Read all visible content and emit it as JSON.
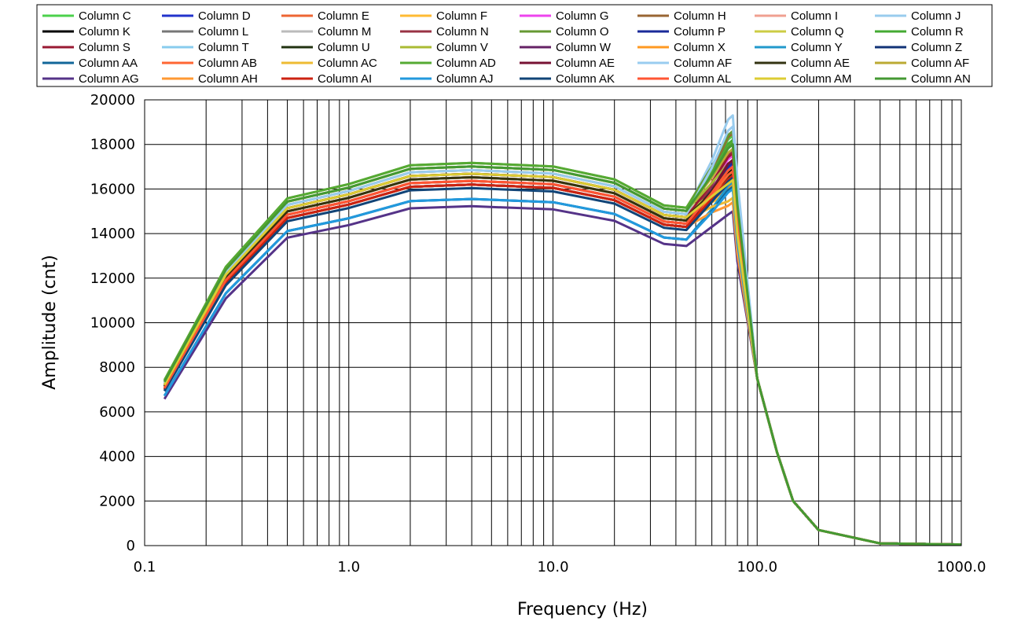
{
  "chart_data": {
    "type": "line",
    "title": "",
    "xlabel": "Frequency (Hz)",
    "ylabel": "Amplitude  (cnt)",
    "xscale": "log",
    "xlim": [
      0.1,
      1000
    ],
    "ylim": [
      0,
      20000
    ],
    "grid": true,
    "legend_position": "top",
    "x_tick_labels": [
      "0.1",
      "1.0",
      "10.0",
      "100.0",
      "1000.0"
    ],
    "y_tick_labels": [
      "0",
      "2000",
      "4000",
      "6000",
      "8000",
      "10000",
      "12000",
      "14000",
      "16000",
      "18000",
      "20000"
    ],
    "x": [
      0.125,
      0.25,
      0.5,
      1,
      2,
      4,
      10,
      20,
      35,
      45,
      60,
      72,
      76,
      80,
      100,
      125,
      150,
      200,
      400,
      1000
    ],
    "series_names": [
      "Column C",
      "Column D",
      "Column E",
      "Column F",
      "Column G",
      "Column H",
      "Column I",
      "Column J",
      "Column K",
      "Column L",
      "Column M",
      "Column N",
      "Column O",
      "Column P",
      "Column Q",
      "Column R",
      "Column S",
      "Column T",
      "Column U",
      "Column V",
      "Column W",
      "Column X",
      "Column Y",
      "Column Z",
      "Column AA",
      "Column AB",
      "Column AC",
      "Column AD",
      "Column AE",
      "Column AF",
      "Column AE",
      "Column AF",
      "Column AG",
      "Column AH",
      "Column AI",
      "Column AJ",
      "Column AK",
      "Column AL",
      "Column AM",
      "Column AN"
    ],
    "series_colors": [
      "#4cd14c",
      "#2233cc",
      "#ee6633",
      "#ffbb33",
      "#ee44ee",
      "#996633",
      "#f0a090",
      "#99ccee",
      "#000000",
      "#777777",
      "#bbbbbb",
      "#993344",
      "#669933",
      "#1a2a99",
      "#cccc44",
      "#44aa33",
      "#991a33",
      "#88ccee",
      "#223311",
      "#aabb33",
      "#662266",
      "#ff9922",
      "#2299cc",
      "#113377",
      "#116699",
      "#ff6633",
      "#eebb33",
      "#55aa33",
      "#771133",
      "#99ccf0",
      "#333311",
      "#bbaa33",
      "#553388",
      "#ff9933",
      "#cc2211",
      "#2299dd",
      "#114477",
      "#ff5533",
      "#ddcc33",
      "#449933"
    ],
    "series_scales": [
      1.05,
      1.0,
      1.0,
      1.02,
      1.03,
      1.04,
      1.02,
      1.05,
      1.02,
      1.0,
      1.03,
      1.01,
      1.06,
      1.0,
      1.04,
      1.05,
      1.03,
      1.05,
      1.03,
      1.05,
      1.01,
      1.02,
      0.96,
      1.0,
      0.96,
      1.01,
      1.02,
      1.06,
      1.0,
      1.04,
      1.02,
      1.05,
      0.94,
      1.0,
      1.0,
      0.96,
      0.99,
      1.01,
      1.03,
      1.05
    ],
    "series_peaks": [
      18400,
      17100,
      16800,
      16000,
      17500,
      18500,
      17800,
      19300,
      16900,
      16500,
      17000,
      17700,
      18600,
      17200,
      16500,
      18200,
      17600,
      18000,
      16700,
      17300,
      17300,
      16200,
      16300,
      16400,
      16100,
      16800,
      15600,
      18100,
      17300,
      18800,
      17000,
      17800,
      15000,
      15400,
      16600,
      16000,
      16500,
      17000,
      16400,
      18000
    ],
    "base_values": [
      7000,
      11800,
      14700,
      15300,
      16100,
      16200,
      16050,
      15500,
      14400,
      14300,
      14900,
      15800,
      15700,
      13000,
      7500,
      4200,
      2000,
      700,
      100,
      50
    ]
  }
}
